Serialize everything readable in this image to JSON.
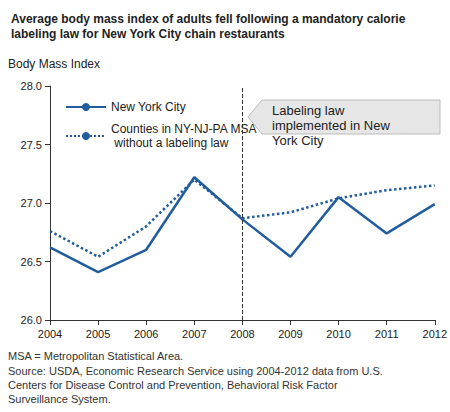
{
  "chart_data": {
    "type": "line",
    "title": "Average body mass index of adults fell following a mandatory calorie labeling law for New York City chain restaurants",
    "y_label": "Body Mass Index",
    "categories": [
      "2004",
      "2005",
      "2006",
      "2007",
      "2008",
      "2009",
      "2010",
      "2011",
      "2012"
    ],
    "series": [
      {
        "name": "New York City",
        "color": "#215d9c",
        "line_style": "solid",
        "values": [
          26.62,
          26.41,
          26.6,
          27.22,
          26.86,
          26.54,
          27.05,
          26.74,
          26.99
        ]
      },
      {
        "name": "Counties in NY-NJ-PA MSA without a labeling law",
        "color": "#215d9c",
        "line_style": "dotted",
        "values": [
          26.76,
          26.54,
          26.8,
          27.2,
          26.87,
          26.92,
          27.04,
          27.11,
          27.15
        ]
      }
    ],
    "ylim": [
      26,
      28
    ],
    "yticks": [
      {
        "value": 26,
        "label": "26.0"
      },
      26.5,
      {
        "value": 27,
        "label": "27.0"
      },
      27.5,
      {
        "value": 28,
        "label": "28.0"
      }
    ],
    "grid": false,
    "legend": "upper left",
    "annotations": [
      {
        "x": "2008",
        "text": "Labeling law implemented in New York City"
      }
    ],
    "notes": [
      "MSA = Metropolitan Statistical Area.",
      "Source: USDA, Economic Research Service using 2004-2012 data from U.S. Centers for Disease Control and Prevention, Behavioral Risk Factor Surveillance System."
    ]
  }
}
